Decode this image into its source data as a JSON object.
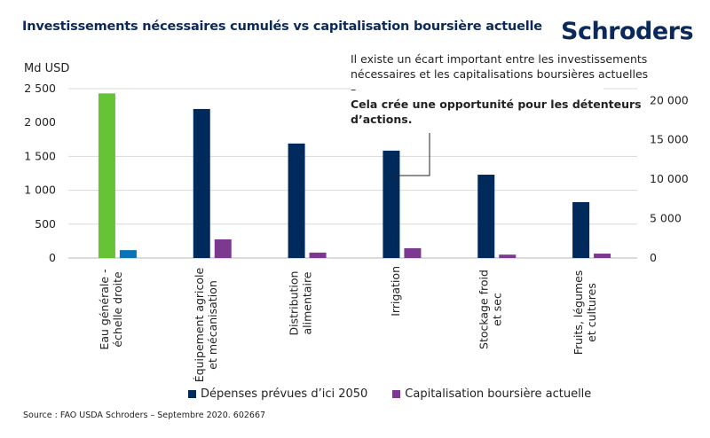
{
  "title": "Investissements nécessaires cumulés vs capitalisation boursière actuelle",
  "logo": "Schroders",
  "annotation": {
    "normal": "Il existe un écart important entre les investissements nécessaires et les capitalisations boursières actuelles –",
    "bold": "Cela crée une opportunité pour les détenteurs d’actions."
  },
  "source": "Source : FAO  USDA  Schroders – Septembre 2020. 602667",
  "colors": {
    "depenses": "#002a5c",
    "capitalisation": "#7b3a8f",
    "eau_depenses": "#66c336",
    "eau_capitalisation": "#0b73b8",
    "grid": "#d9d9d9",
    "title": "#0b2a5b"
  },
  "chart_data": {
    "type": "bar",
    "title": "Investissements nécessaires cumulés vs capitalisation boursière actuelle",
    "ylabel": "Md USD",
    "ylim": [
      0,
      2500
    ],
    "y_ticks": [
      "2 500",
      "2 000",
      "1 500",
      "1 000",
      "500",
      "0"
    ],
    "y_tick_values": [
      2500,
      2000,
      1500,
      1000,
      500,
      0
    ],
    "y2lim": [
      0,
      21500
    ],
    "y2_ticks": [
      "20 000",
      "15 000",
      "10 000",
      "5 000",
      "0"
    ],
    "y2_tick_values": [
      20000,
      15000,
      10000,
      5000,
      0
    ],
    "grid": true,
    "legend_position": "bottom",
    "categories": [
      [
        "Eau générale -",
        "échelle droite"
      ],
      [
        "Équipement agricole",
        "et mécanisation"
      ],
      [
        "Distribution",
        "alimentaire"
      ],
      [
        "Irrigation"
      ],
      [
        "Stockage froid",
        "et sec"
      ],
      [
        "Fruits, légumes",
        "et cultures"
      ]
    ],
    "series": [
      {
        "name": "Dépenses prévues d’ici 2050",
        "values": [
          20900,
          2200,
          1690,
          1585,
          1230,
          825
        ]
      },
      {
        "name": "Capitalisation boursière actuelle",
        "values": [
          1000,
          275,
          80,
          145,
          50,
          65
        ]
      }
    ],
    "right_axis_categories": [
      0
    ]
  }
}
